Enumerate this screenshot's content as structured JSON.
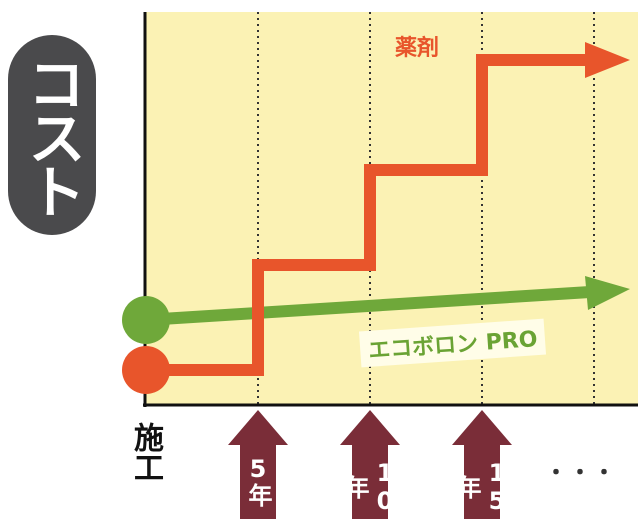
{
  "y_label": "コスト",
  "series": [
    {
      "label": "薬剤"
    },
    {
      "label": "エコボロン PRO"
    }
  ],
  "x_labels": {
    "start": "施工",
    "marks": [
      "5年",
      "10年",
      "15年"
    ],
    "more": "・・・"
  }
}
